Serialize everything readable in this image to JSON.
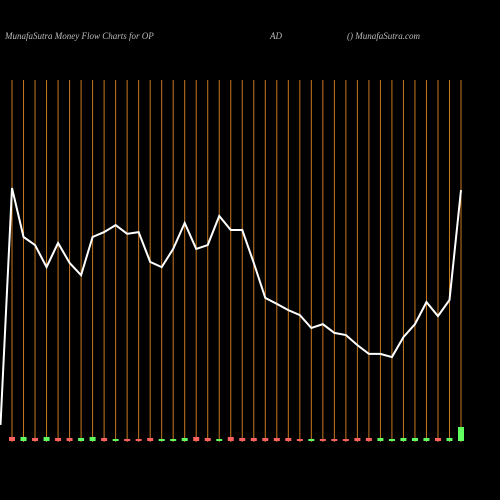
{
  "chart_data": {
    "type": "line",
    "title_parts": [
      "MunafaSutra  Money Flow  Charts for OP",
      "AD",
      "() MunafaSutra.com"
    ],
    "line_color": "#ffffff",
    "gridline_color": "#c8781e",
    "ylim": [
      0,
      100
    ],
    "values": [
      4.3,
      72,
      58,
      55.7,
      49.4,
      56.3,
      50.6,
      47.1,
      58,
      59.4,
      61.4,
      58.9,
      59.4,
      50.9,
      49.4,
      54.6,
      62,
      54.6,
      55.7,
      64,
      60,
      60,
      50.6,
      40.6,
      38.9,
      37.1,
      35.7,
      32,
      33.1,
      30.6,
      30,
      27.1,
      24.6,
      24.6,
      23.7,
      29.4,
      33.1,
      39.4,
      35.4,
      40,
      71.4
    ],
    "bars": {
      "values": [
        null,
        4,
        4,
        3,
        4,
        3,
        3,
        3,
        4,
        3,
        2,
        2,
        2,
        3,
        2,
        2,
        3,
        4,
        3,
        2,
        4,
        3,
        3,
        3,
        3,
        3,
        2,
        2,
        2,
        2,
        2,
        3,
        3,
        3,
        2,
        3,
        3,
        3,
        3,
        3,
        14
      ],
      "colors": [
        null,
        "#ff6060",
        "#60ff60",
        "#ff6060",
        "#60ff60",
        "#ff6060",
        "#ff6060",
        "#60ff60",
        "#60ff60",
        "#ff6060",
        "#60ff60",
        "#ff6060",
        "#ff6060",
        "#ff6060",
        "#60ff60",
        "#60ff60",
        "#60ff60",
        "#ff6060",
        "#ff6060",
        "#60ff60",
        "#ff6060",
        "#ff6060",
        "#ff6060",
        "#ff6060",
        "#ff6060",
        "#ff6060",
        "#ff6060",
        "#60ff60",
        "#ff6060",
        "#ff6060",
        "#ff6060",
        "#ff6060",
        "#ff6060",
        "#60ff60",
        "#60ff60",
        "#60ff60",
        "#60ff60",
        "#60ff60",
        "#ff6060",
        "#60ff60",
        "#60ff60"
      ]
    }
  }
}
